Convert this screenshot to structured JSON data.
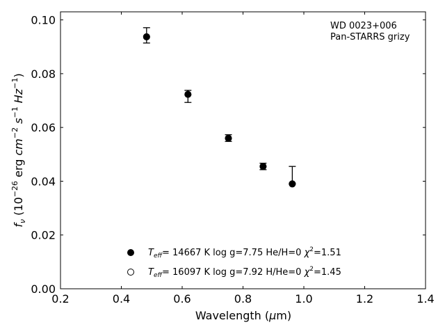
{
  "chart_data": {
    "type": "scatter",
    "xlabel": "Wavelength (μm)",
    "xlabel_parts": {
      "text": "Wavelength (",
      "mu": "μ",
      "unit": "m)"
    },
    "ylabel_parts": {
      "f": "f",
      "nu": "ν",
      "open": " (10",
      "exp1": "−26",
      "erg": " erg ",
      "cm": "cm",
      "exp2": "−2",
      "s": " s",
      "exp3": "−1",
      "hz": " Hz",
      "exp4": "−1",
      "close": ")"
    },
    "xlim": [
      0.2,
      1.4
    ],
    "ylim": [
      0.0,
      0.103
    ],
    "xticks": [
      "0.2",
      "0.4",
      "0.6",
      "0.8",
      "1.0",
      "1.2",
      "1.4"
    ],
    "xtick_values": [
      0.2,
      0.4,
      0.6,
      0.8,
      1.0,
      1.2,
      1.4
    ],
    "yticks": [
      "0.00",
      "0.02",
      "0.04",
      "0.06",
      "0.08",
      "0.10"
    ],
    "ytick_values": [
      0.0,
      0.02,
      0.04,
      0.06,
      0.08,
      0.1
    ],
    "grid": false,
    "annotation": [
      "WD 0023+006",
      "Pan-STARRS grizy"
    ],
    "observed": {
      "x": [
        0.483,
        0.619,
        0.752,
        0.866,
        0.962
      ],
      "y": [
        0.0937,
        0.0723,
        0.056,
        0.0455,
        0.039
      ],
      "err_low": [
        0.0023,
        0.003,
        0.0012,
        0.0012,
        0.0
      ],
      "err_high": [
        0.0034,
        0.0015,
        0.0013,
        0.0012,
        0.0065
      ]
    },
    "series": [
      {
        "marker": "filled-circle",
        "x": [
          0.483,
          0.619,
          0.752,
          0.866,
          0.962
        ],
        "y": [
          0.0937,
          0.0723,
          0.056,
          0.0455,
          0.039
        ],
        "label": {
          "T": "T",
          "eff": "eff",
          "rest": "= 14667 K  log g=7.75  He/H=0  ",
          "chi": "χ",
          "chi_exp": "2",
          "chi_rest": "=1.51"
        }
      },
      {
        "marker": "open-circle",
        "x": [
          0.483,
          0.619,
          0.752,
          0.866,
          0.962
        ],
        "y": [
          0.0937,
          0.0723,
          0.056,
          0.0455,
          0.039
        ],
        "label": {
          "T": "T",
          "eff": "eff",
          "rest": "= 16097 K  log g=7.92  H/He=0  ",
          "chi": "χ",
          "chi_exp": "2",
          "chi_rest": "=1.45"
        }
      }
    ],
    "legend_placement": "lower-center"
  }
}
